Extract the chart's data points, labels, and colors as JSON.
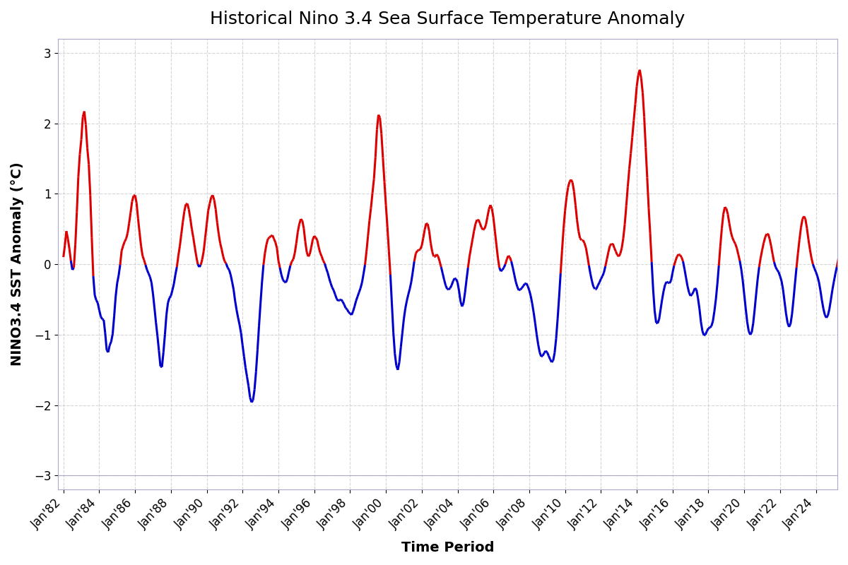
{
  "title": "Historical Nino 3.4 Sea Surface Temperature Anomaly",
  "xlabel": "Time Period",
  "ylabel": "NINO3.4 SST Anomaly (°C)",
  "ylim": [
    -3.2,
    3.2
  ],
  "yticks": [
    -3,
    -2,
    -1,
    0,
    1,
    2,
    3
  ],
  "background_color": "#ffffff",
  "grid_color": "#bbbbbb",
  "positive_color": "#dd0000",
  "negative_color": "#0000cc",
  "line_width": 2.2,
  "title_fontsize": 18,
  "label_fontsize": 14,
  "tick_fontsize": 12,
  "x_tick_years": [
    1982,
    1984,
    1986,
    1988,
    1990,
    1992,
    1994,
    1996,
    1998,
    2000,
    2002,
    2004,
    2006,
    2008,
    2010,
    2012,
    2014,
    2016,
    2018,
    2020,
    2022,
    2024
  ],
  "start_year": 1982,
  "sst_data": [
    0.1,
    0.27,
    0.47,
    0.36,
    0.22,
    0.05,
    -0.08,
    -0.05,
    0.28,
    0.74,
    1.24,
    1.56,
    1.77,
    2.09,
    2.17,
    1.98,
    1.65,
    1.42,
    0.98,
    0.38,
    -0.17,
    -0.44,
    -0.51,
    -0.55,
    -0.65,
    -0.74,
    -0.78,
    -0.79,
    -0.98,
    -1.22,
    -1.25,
    -1.15,
    -1.1,
    -0.99,
    -0.74,
    -0.46,
    -0.27,
    -0.16,
    -0.01,
    0.19,
    0.26,
    0.32,
    0.36,
    0.44,
    0.58,
    0.73,
    0.89,
    0.97,
    0.98,
    0.87,
    0.65,
    0.45,
    0.26,
    0.12,
    0.06,
    -0.01,
    -0.08,
    -0.13,
    -0.18,
    -0.26,
    -0.42,
    -0.62,
    -0.83,
    -1.02,
    -1.23,
    -1.45,
    -1.46,
    -1.25,
    -1.0,
    -0.72,
    -0.55,
    -0.48,
    -0.45,
    -0.37,
    -0.28,
    -0.15,
    -0.04,
    0.12,
    0.26,
    0.43,
    0.6,
    0.75,
    0.85,
    0.86,
    0.78,
    0.65,
    0.5,
    0.38,
    0.24,
    0.11,
    0.0,
    -0.04,
    -0.01,
    0.07,
    0.19,
    0.38,
    0.57,
    0.76,
    0.86,
    0.95,
    0.98,
    0.91,
    0.78,
    0.59,
    0.43,
    0.3,
    0.21,
    0.11,
    0.04,
    0.01,
    -0.05,
    -0.08,
    -0.15,
    -0.25,
    -0.36,
    -0.52,
    -0.65,
    -0.76,
    -0.86,
    -0.98,
    -1.15,
    -1.31,
    -1.47,
    -1.6,
    -1.73,
    -1.89,
    -1.96,
    -1.93,
    -1.78,
    -1.53,
    -1.22,
    -0.88,
    -0.56,
    -0.26,
    -0.01,
    0.16,
    0.28,
    0.36,
    0.38,
    0.4,
    0.41,
    0.36,
    0.31,
    0.23,
    0.05,
    -0.05,
    -0.15,
    -0.22,
    -0.25,
    -0.26,
    -0.21,
    -0.11,
    -0.02,
    0.04,
    0.07,
    0.16,
    0.3,
    0.46,
    0.57,
    0.64,
    0.62,
    0.51,
    0.32,
    0.17,
    0.11,
    0.14,
    0.24,
    0.35,
    0.4,
    0.38,
    0.34,
    0.24,
    0.16,
    0.11,
    0.05,
    0.01,
    -0.06,
    -0.12,
    -0.2,
    -0.27,
    -0.33,
    -0.37,
    -0.43,
    -0.49,
    -0.52,
    -0.51,
    -0.5,
    -0.53,
    -0.57,
    -0.62,
    -0.64,
    -0.68,
    -0.7,
    -0.72,
    -0.67,
    -0.6,
    -0.52,
    -0.46,
    -0.4,
    -0.34,
    -0.26,
    -0.14,
    -0.01,
    0.18,
    0.4,
    0.62,
    0.8,
    1.01,
    1.21,
    1.52,
    1.91,
    2.12,
    2.08,
    1.85,
    1.51,
    1.17,
    0.84,
    0.53,
    0.19,
    -0.15,
    -0.56,
    -0.97,
    -1.27,
    -1.44,
    -1.5,
    -1.39,
    -1.18,
    -0.98,
    -0.78,
    -0.63,
    -0.52,
    -0.43,
    -0.35,
    -0.25,
    -0.11,
    0.04,
    0.15,
    0.19,
    0.2,
    0.21,
    0.26,
    0.37,
    0.49,
    0.58,
    0.57,
    0.47,
    0.3,
    0.18,
    0.11,
    0.11,
    0.14,
    0.11,
    0.04,
    -0.04,
    -0.13,
    -0.22,
    -0.3,
    -0.35,
    -0.36,
    -0.34,
    -0.3,
    -0.24,
    -0.2,
    -0.21,
    -0.26,
    -0.38,
    -0.53,
    -0.6,
    -0.55,
    -0.4,
    -0.22,
    -0.05,
    0.11,
    0.23,
    0.35,
    0.47,
    0.57,
    0.63,
    0.63,
    0.58,
    0.52,
    0.49,
    0.5,
    0.56,
    0.67,
    0.78,
    0.84,
    0.79,
    0.66,
    0.47,
    0.28,
    0.09,
    -0.05,
    -0.1,
    -0.08,
    -0.05,
    0.0,
    0.07,
    0.12,
    0.1,
    0.04,
    -0.05,
    -0.15,
    -0.25,
    -0.32,
    -0.37,
    -0.36,
    -0.34,
    -0.31,
    -0.28,
    -0.27,
    -0.31,
    -0.37,
    -0.45,
    -0.56,
    -0.69,
    -0.84,
    -1.0,
    -1.14,
    -1.25,
    -1.31,
    -1.3,
    -1.26,
    -1.23,
    -1.25,
    -1.3,
    -1.35,
    -1.39,
    -1.37,
    -1.26,
    -1.06,
    -0.78,
    -0.47,
    -0.13,
    0.2,
    0.51,
    0.76,
    0.95,
    1.09,
    1.17,
    1.2,
    1.16,
    1.03,
    0.84,
    0.63,
    0.47,
    0.37,
    0.34,
    0.34,
    0.3,
    0.23,
    0.11,
    -0.02,
    -0.14,
    -0.24,
    -0.32,
    -0.35,
    -0.35,
    -0.3,
    -0.26,
    -0.21,
    -0.17,
    -0.12,
    -0.03,
    0.07,
    0.17,
    0.26,
    0.29,
    0.29,
    0.23,
    0.18,
    0.13,
    0.11,
    0.15,
    0.23,
    0.37,
    0.57,
    0.83,
    1.1,
    1.35,
    1.57,
    1.8,
    2.04,
    2.27,
    2.52,
    2.68,
    2.76,
    2.64,
    2.43,
    2.09,
    1.66,
    1.23,
    0.8,
    0.44,
    0.03,
    -0.36,
    -0.66,
    -0.83,
    -0.84,
    -0.78,
    -0.64,
    -0.5,
    -0.38,
    -0.29,
    -0.25,
    -0.26,
    -0.27,
    -0.23,
    -0.12,
    -0.02,
    0.05,
    0.11,
    0.14,
    0.13,
    0.1,
    0.04,
    -0.07,
    -0.19,
    -0.31,
    -0.4,
    -0.45,
    -0.43,
    -0.39,
    -0.34,
    -0.36,
    -0.48,
    -0.63,
    -0.82,
    -0.95,
    -1.01,
    -1.0,
    -0.95,
    -0.91,
    -0.9,
    -0.88,
    -0.81,
    -0.67,
    -0.5,
    -0.28,
    -0.02,
    0.26,
    0.51,
    0.71,
    0.81,
    0.79,
    0.71,
    0.58,
    0.46,
    0.38,
    0.33,
    0.29,
    0.23,
    0.14,
    0.05,
    -0.07,
    -0.23,
    -0.43,
    -0.63,
    -0.82,
    -0.95,
    -1.0,
    -0.97,
    -0.84,
    -0.64,
    -0.42,
    -0.21,
    -0.04,
    0.09,
    0.2,
    0.3,
    0.38,
    0.43,
    0.43,
    0.36,
    0.26,
    0.14,
    0.03,
    -0.04,
    -0.08,
    -0.11,
    -0.17,
    -0.24,
    -0.36,
    -0.53,
    -0.7,
    -0.83,
    -0.89,
    -0.85,
    -0.71,
    -0.5,
    -0.27,
    -0.05,
    0.16,
    0.35,
    0.52,
    0.64,
    0.68,
    0.64,
    0.51,
    0.35,
    0.21,
    0.09,
    0.0,
    -0.06,
    -0.11,
    -0.17,
    -0.25,
    -0.37,
    -0.51,
    -0.63,
    -0.72,
    -0.76,
    -0.73,
    -0.64,
    -0.51,
    -0.37,
    -0.25,
    -0.14,
    -0.04,
    0.07,
    0.19,
    0.33,
    0.49,
    0.64,
    0.75,
    0.83,
    0.86,
    0.84,
    0.77,
    0.64,
    0.49,
    0.33,
    0.17,
    0.02,
    -0.11,
    -0.23,
    -0.37,
    -0.53,
    -0.7,
    -0.84,
    -0.92,
    -0.92,
    -0.84,
    -0.71,
    -0.56,
    -0.41,
    -0.26,
    -0.12,
    0.01,
    0.12,
    0.21,
    0.28,
    0.35,
    0.43,
    0.52,
    0.6,
    0.63,
    0.6,
    0.5,
    0.37,
    0.23,
    0.1,
    0.01,
    -0.03,
    -0.02,
    0.04,
    0.14,
    0.29,
    0.5,
    0.74,
    1.01,
    1.28,
    1.53,
    1.72,
    1.87,
    1.98,
    2.0,
    1.93,
    1.76,
    1.52,
    1.2,
    0.82,
    0.44,
    0.07,
    -0.27,
    -0.57,
    -0.83,
    -1.03,
    -1.13,
    -1.12,
    -1.05,
    -0.93,
    -0.82,
    -0.72,
    -0.59,
    -0.43,
    -0.24,
    -0.04,
    0.14,
    0.27,
    0.35,
    0.37,
    0.35,
    0.32,
    0.32,
    0.37,
    0.45,
    0.55,
    0.62,
    0.63,
    0.58,
    0.46,
    0.3,
    0.12,
    -0.07,
    -0.27,
    -0.47,
    -0.63,
    -0.73,
    -0.75,
    -0.73,
    -0.68,
    -0.63,
    -0.59,
    -0.55,
    -0.5,
    -0.42,
    -0.33,
    -0.21,
    -0.07,
    0.07,
    0.2,
    0.31,
    0.37,
    0.4,
    0.38,
    0.31,
    0.21,
    0.11,
    0.04,
    0.01,
    0.05,
    0.14,
    0.29,
    0.46,
    0.63,
    0.79,
    0.91,
    0.96,
    0.95,
    0.89,
    0.79,
    0.66,
    0.5,
    0.33,
    0.17,
    0.02,
    -0.11,
    -0.22,
    -0.34,
    -0.47,
    -0.63,
    -0.79,
    -0.95,
    -1.06,
    -1.09,
    -1.04,
    -0.94,
    -0.82,
    -0.7,
    -0.6,
    -0.52,
    -0.47,
    -0.43,
    -0.37,
    -0.27,
    -0.12,
    0.08,
    0.31,
    0.53,
    0.72,
    0.87,
    0.96,
    1.01,
    1.01,
    0.97,
    0.89,
    0.77,
    0.62,
    0.44,
    0.25,
    0.05,
    -0.16,
    -0.37
  ]
}
